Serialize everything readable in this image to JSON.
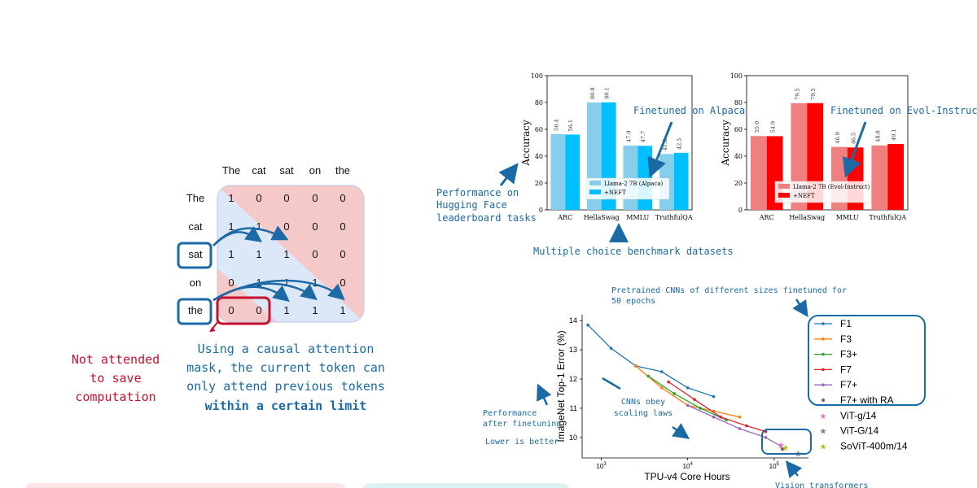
{
  "mask": {
    "columns": [
      "The",
      "cat",
      "sat",
      "on",
      "the"
    ],
    "rows": [
      "The",
      "cat",
      "sat",
      "on",
      "the"
    ],
    "values": [
      [
        1,
        0,
        0,
        0,
        0
      ],
      [
        1,
        1,
        0,
        0,
        0
      ],
      [
        1,
        1,
        1,
        0,
        0
      ],
      [
        0,
        1,
        1,
        1,
        0
      ],
      [
        0,
        0,
        1,
        1,
        1
      ]
    ],
    "caption_red": [
      "Not attended",
      "to save",
      "computation"
    ],
    "caption_blue": [
      "Using a causal attention",
      "mask, the current token can",
      "only attend previous tokens"
    ],
    "caption_bold": "within a certain limit",
    "colors": {
      "attend": "#dce8f7",
      "masked": "#f5c9c9",
      "blue": "#1b6aa5",
      "red": "#c8102e"
    }
  },
  "neft": {
    "left_note": [
      "Performance on",
      "Hugging Face",
      "leaderboard tasks"
    ],
    "bottom_note": "Multiple choice benchmark datasets",
    "chart_data": [
      {
        "type": "bar",
        "title": "",
        "xlabel": "",
        "ylabel": "Accuracy",
        "ylim": [
          0,
          100
        ],
        "yticks": [
          "0",
          "20",
          "40",
          "60",
          "80",
          "100"
        ],
        "categories": [
          "ARC",
          "HellaSwag",
          "MMLU",
          "TruthfulQA"
        ],
        "series": [
          {
            "name": "Llama-2 7B (Alpaca)",
            "values": [
              56.4,
              80.0,
              47.9,
              41.6
            ],
            "labels": [
              "56.4",
              "80.0",
              "47.9",
              "41.6"
            ],
            "color": "#87ceeb"
          },
          {
            "name": "+NEFT",
            "values": [
              56.1,
              80.1,
              47.7,
              42.5
            ],
            "labels": [
              "56.1",
              "80.1",
              "47.7",
              "42.5"
            ],
            "color": "#00bfff"
          }
        ],
        "annotation": "Finetuned on Alpaca"
      },
      {
        "type": "bar",
        "title": "",
        "xlabel": "",
        "ylabel": "Accuracy",
        "ylim": [
          0,
          100
        ],
        "yticks": [
          "0",
          "20",
          "40",
          "60",
          "80",
          "100"
        ],
        "categories": [
          "ARC",
          "HellaSwag",
          "MMLU",
          "TruthfulQA"
        ],
        "series": [
          {
            "name": "Llama-2 7B (Evol-Instruct)",
            "values": [
              55.0,
              79.5,
              46.9,
              48.0
            ],
            "labels": [
              "55.0",
              "79.5",
              "46.9",
              "48.0"
            ],
            "color": "#f08080"
          },
          {
            "name": "+NEFT",
            "values": [
              54.9,
              79.5,
              46.5,
              49.1
            ],
            "labels": [
              "54.9",
              "79.5",
              "46.5",
              "49.1"
            ],
            "color": "#ff0000"
          }
        ],
        "annotation": "Finetuned on Evol-Instruct"
      }
    ]
  },
  "scaling": {
    "top_note": [
      "Pretrained CNNs of different sizes finetuned for",
      "50 epochs"
    ],
    "left_note": [
      "Performance",
      "after finetuning"
    ],
    "left_note2": "Lower is better",
    "mid_note": [
      "CNNs obey",
      "scaling laws"
    ],
    "bottom_note": "Vision transformers",
    "chart_data": {
      "type": "line",
      "xlabel": "TPU-v4 Core Hours",
      "ylabel": "ImageNet Top-1 Error (%)",
      "x_scale": "log",
      "xlim": [
        600,
        250000
      ],
      "ylim": [
        9.3,
        14.2
      ],
      "xticks": [
        {
          "v": 1000,
          "base": "10",
          "exp": "3"
        },
        {
          "v": 10000,
          "base": "10",
          "exp": "4"
        },
        {
          "v": 100000,
          "base": "10",
          "exp": "5"
        }
      ],
      "yticks": [
        "10",
        "11",
        "12",
        "13",
        "14"
      ],
      "series": [
        {
          "name": "F1",
          "color": "#1f77b4",
          "x": [
            700,
            1300,
            2500,
            5000,
            10000,
            20000
          ],
          "y": [
            13.85,
            13.05,
            12.45,
            12.25,
            11.7,
            11.4
          ]
        },
        {
          "name": "F3",
          "color": "#ff7f0e",
          "x": [
            2500,
            5000,
            10000,
            20000,
            40000
          ],
          "y": [
            12.45,
            11.7,
            11.1,
            10.9,
            10.7
          ]
        },
        {
          "name": "F3+",
          "color": "#2ca02c",
          "x": [
            3500,
            7000,
            14000,
            28000
          ],
          "y": [
            12.1,
            11.5,
            11.0,
            10.6
          ]
        },
        {
          "name": "F7",
          "color": "#d62728",
          "x": [
            6000,
            12000,
            24000,
            48000,
            80000
          ],
          "y": [
            11.9,
            11.3,
            10.7,
            10.4,
            10.2
          ]
        },
        {
          "name": "F7+",
          "color": "#9467bd",
          "x": [
            10000,
            20000,
            40000,
            80000,
            120000
          ],
          "y": [
            11.1,
            10.7,
            10.3,
            10.0,
            9.7
          ]
        },
        {
          "name": "F7+ with RA",
          "color": "#8c564b",
          "marker": "dot",
          "x": [
            125000
          ],
          "y": [
            9.6
          ]
        },
        {
          "name": "ViT-g/14",
          "color": "#e377c2",
          "marker": "star",
          "x": [
            120000
          ],
          "y": [
            9.75
          ]
        },
        {
          "name": "ViT-G/14",
          "color": "#7f7f7f",
          "marker": "star",
          "x": [
            190000
          ],
          "y": [
            9.45
          ]
        },
        {
          "name": "SoViT-400m/14",
          "color": "#bcbd22",
          "marker": "star",
          "x": [
            135000
          ],
          "y": [
            9.65
          ]
        }
      ]
    }
  }
}
